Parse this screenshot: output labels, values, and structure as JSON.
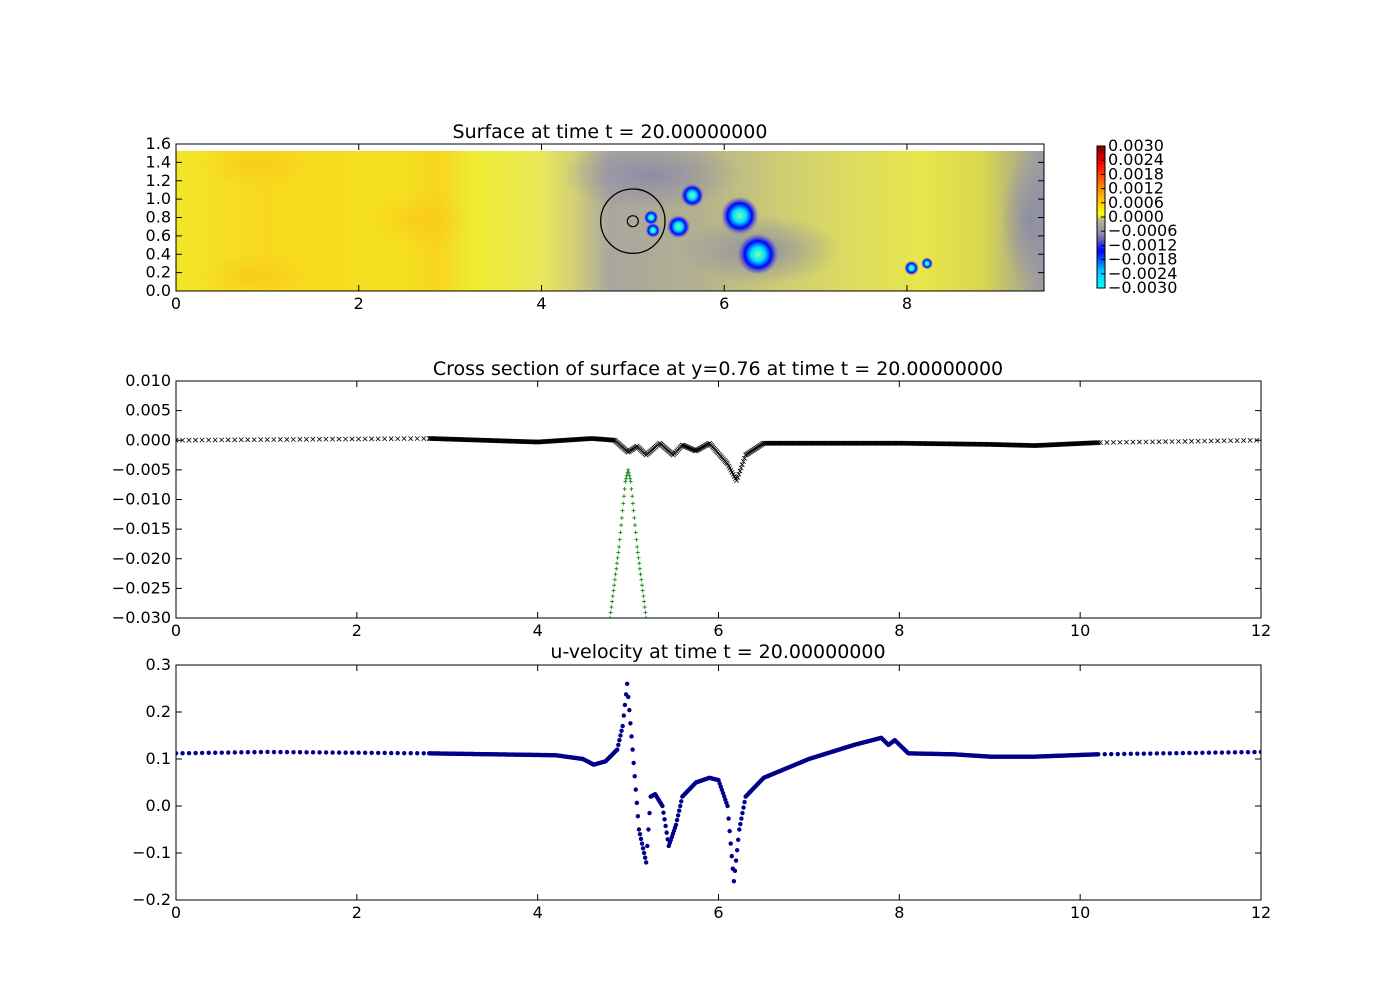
{
  "chart_data": [
    {
      "type": "heatmap",
      "title": "Surface at time t =    20.00000000",
      "xlim": [
        0,
        9.5
      ],
      "ylim": [
        0,
        1.6
      ],
      "xticks": [
        "0",
        "2",
        "4",
        "6",
        "8"
      ],
      "yticks": [
        "0.0",
        "0.2",
        "0.4",
        "0.6",
        "0.8",
        "1.0",
        "1.2",
        "1.4",
        "1.6"
      ],
      "colorbar": {
        "ticks": [
          "0.0030",
          "0.0024",
          "0.0018",
          "0.0012",
          "0.0006",
          "0.0000",
          "−0.0006",
          "−0.0012",
          "−0.0018",
          "−0.0024",
          "−0.0030"
        ],
        "colors": [
          "#7f0000",
          "#ff0000",
          "#ff8000",
          "#ffd000",
          "#ffff00",
          "#b8b48c",
          "#8c8ca8",
          "#0000ff",
          "#00c8ff",
          "#00ffff"
        ]
      },
      "features": {
        "circle": {
          "cx": 5.0,
          "cy": 0.76,
          "r": 0.35
        },
        "depressions": [
          {
            "x": 5.2,
            "y": 0.8,
            "r": 0.05
          },
          {
            "x": 5.22,
            "y": 0.66,
            "r": 0.05
          },
          {
            "x": 5.5,
            "y": 0.7,
            "r": 0.08
          },
          {
            "x": 5.65,
            "y": 1.04,
            "r": 0.08
          },
          {
            "x": 6.17,
            "y": 0.82,
            "r": 0.13
          },
          {
            "x": 6.37,
            "y": 0.4,
            "r": 0.14
          },
          {
            "x": 8.05,
            "y": 0.25,
            "r": 0.05
          },
          {
            "x": 8.22,
            "y": 0.3,
            "r": 0.04
          }
        ]
      }
    },
    {
      "type": "scatter",
      "title": "Cross section of surface at y=0.76 at time t =    20.00000000",
      "xlim": [
        0,
        12
      ],
      "ylim": [
        -0.03,
        0.01
      ],
      "xticks": [
        "0",
        "2",
        "4",
        "6",
        "8",
        "10",
        "12"
      ],
      "yticks": [
        "0.010",
        "0.005",
        "0.000",
        "−0.005",
        "−0.010",
        "−0.015",
        "−0.020",
        "−0.025",
        "−0.030"
      ],
      "series": [
        {
          "marker": "x",
          "color": "#000000",
          "x": [
            0,
            2.8,
            4.0,
            4.6,
            4.85,
            5.0,
            5.1,
            5.2,
            5.35,
            5.5,
            5.6,
            5.75,
            5.9,
            6.1,
            6.2,
            6.3,
            6.5,
            8.0,
            9.0,
            9.5,
            10.2,
            12.0
          ],
          "y": [
            0.0,
            0.0003,
            -0.0003,
            0.0003,
            0.0,
            -0.002,
            -0.001,
            -0.0025,
            -0.0005,
            -0.0025,
            -0.0008,
            -0.0018,
            -0.0005,
            -0.004,
            -0.0068,
            -0.0025,
            -0.0005,
            -0.0005,
            -0.0007,
            -0.0009,
            -0.0004,
            0.0
          ]
        },
        {
          "marker": "+",
          "color": "#008000",
          "x": [
            4.8,
            4.9,
            4.97,
            5.0,
            5.03,
            5.1,
            5.2
          ],
          "y": [
            -0.03,
            -0.018,
            -0.007,
            -0.005,
            -0.007,
            -0.018,
            -0.03
          ]
        }
      ]
    },
    {
      "type": "scatter",
      "title": "u-velocity at time t =    20.00000000",
      "xlim": [
        0,
        12
      ],
      "ylim": [
        -0.2,
        0.3
      ],
      "xticks": [
        "0",
        "2",
        "4",
        "6",
        "8",
        "10",
        "12"
      ],
      "yticks": [
        "0.3",
        "0.2",
        "0.1",
        "0.0",
        "−0.1",
        "−0.2"
      ],
      "series": [
        {
          "marker": "o",
          "color": "#00008b",
          "x": [
            0,
            1.0,
            2.8,
            3.5,
            4.2,
            4.5,
            4.62,
            4.75,
            4.88,
            4.94,
            4.99,
            5.05,
            5.12,
            5.2,
            5.25,
            5.3,
            5.38,
            5.45,
            5.53,
            5.6,
            5.75,
            5.9,
            6.0,
            6.1,
            6.17,
            6.23,
            6.3,
            6.5,
            7.0,
            7.5,
            7.8,
            7.88,
            7.95,
            8.1,
            8.6,
            9.0,
            9.5,
            10.2,
            12.0
          ],
          "y": [
            0.112,
            0.115,
            0.112,
            0.11,
            0.108,
            0.1,
            0.088,
            0.095,
            0.12,
            0.17,
            0.26,
            0.12,
            -0.05,
            -0.12,
            0.02,
            0.025,
            0.0,
            -0.085,
            -0.04,
            0.02,
            0.05,
            0.06,
            0.055,
            0.0,
            -0.16,
            -0.05,
            0.02,
            0.06,
            0.1,
            0.13,
            0.145,
            0.13,
            0.14,
            0.112,
            0.11,
            0.105,
            0.105,
            0.11,
            0.115
          ]
        }
      ]
    }
  ]
}
